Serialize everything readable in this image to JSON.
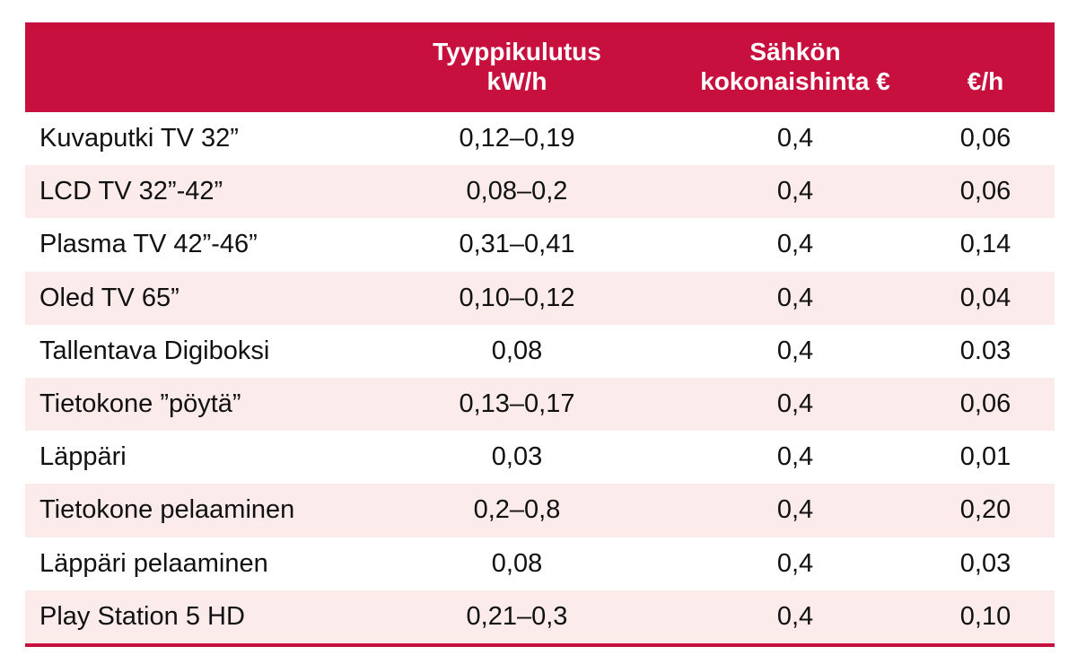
{
  "colors": {
    "header_bg": "#c8103e",
    "alt_row_bg": "#fbeceb",
    "rule": "#c8103e"
  },
  "table": {
    "headers": [
      {
        "lines": [
          "",
          ""
        ]
      },
      {
        "lines": [
          "Tyyppikulutus",
          "kW/h"
        ]
      },
      {
        "lines": [
          "Sähkön",
          "kokonaishinta €"
        ]
      },
      {
        "lines": [
          "",
          "€/h"
        ]
      }
    ],
    "rows": [
      {
        "device": "Kuvaputki TV 32”",
        "consumption": "0,12–0,19",
        "price": "0,4",
        "per_hour": "0,06"
      },
      {
        "device": "LCD TV 32”-42”",
        "consumption": "0,08–0,2",
        "price": "0,4",
        "per_hour": "0,06"
      },
      {
        "device": "Plasma TV 42”-46”",
        "consumption": "0,31–0,41",
        "price": "0,4",
        "per_hour": "0,14"
      },
      {
        "device": "Oled TV 65”",
        "consumption": "0,10–0,12",
        "price": "0,4",
        "per_hour": "0,04"
      },
      {
        "device": "Tallentava Digiboksi",
        "consumption": "0,08",
        "price": "0,4",
        "per_hour": "0.03"
      },
      {
        "device": "Tietokone ”pöytä”",
        "consumption": "0,13–0,17",
        "price": "0,4",
        "per_hour": "0,06"
      },
      {
        "device": "Läppäri",
        "consumption": "0,03",
        "price": "0,4",
        "per_hour": "0,01"
      },
      {
        "device": "Tietokone pelaaminen",
        "consumption": "0,2–0,8",
        "price": "0,4",
        "per_hour": "0,20"
      },
      {
        "device": "Läppäri pelaaminen",
        "consumption": "0,08",
        "price": "0,4",
        "per_hour": "0,03"
      },
      {
        "device": "Play Station 5 HD",
        "consumption": "0,21–0,3",
        "price": "0,4",
        "per_hour": "0,10"
      }
    ]
  }
}
